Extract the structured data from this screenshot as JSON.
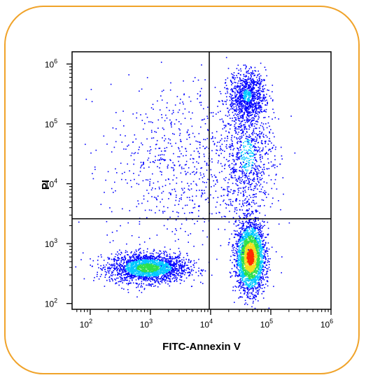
{
  "colors": {
    "frame_border": "#f0a32a",
    "gate_lines": "#000000",
    "density_low": "#0000ff",
    "density_mid": "#00c8ff",
    "density_high": "#2ee04a",
    "density_peak": "#ff2a00"
  },
  "chart_data": {
    "type": "scatter",
    "subtype": "flow-cytometry-density-dot-plot",
    "title": "",
    "xlabel": "FITC-Annexin V",
    "ylabel": "PI",
    "x_scale": "log",
    "y_scale": "log",
    "xlim": [
      50,
      1000000
    ],
    "ylim": [
      80,
      1600000
    ],
    "x_ticks": [
      {
        "value": 100,
        "base": "10",
        "exp": "2"
      },
      {
        "value": 1000,
        "base": "10",
        "exp": "3"
      },
      {
        "value": 10000,
        "base": "10",
        "exp": "4"
      },
      {
        "value": 100000,
        "base": "10",
        "exp": "5"
      },
      {
        "value": 1000000,
        "base": "10",
        "exp": "6"
      }
    ],
    "y_ticks": [
      {
        "value": 100,
        "base": "10",
        "exp": "2"
      },
      {
        "value": 1000,
        "base": "10",
        "exp": "3"
      },
      {
        "value": 10000,
        "base": "10",
        "exp": "4"
      },
      {
        "value": 100000,
        "base": "10",
        "exp": "5"
      },
      {
        "value": 1000000,
        "base": "10",
        "exp": "6"
      }
    ],
    "quadrant_gates": {
      "x": 9500,
      "y": 2600
    },
    "populations": [
      {
        "center": [
          900,
          400
        ],
        "spread_decades": [
          0.32,
          0.12
        ],
        "density": "high"
      },
      {
        "center": [
          45000,
          600
        ],
        "spread_decades": [
          0.12,
          0.28
        ],
        "density": "peak"
      },
      {
        "center": [
          40000,
          30000
        ],
        "spread_decades": [
          0.22,
          0.55
        ],
        "density": "medium"
      },
      {
        "center": [
          40000,
          300000
        ],
        "spread_decades": [
          0.15,
          0.2
        ],
        "density": "medium"
      },
      {
        "center": [
          3000,
          20000
        ],
        "spread_decades": [
          0.6,
          0.7
        ],
        "density": "sparse"
      }
    ],
    "grid": false,
    "legend": "none"
  }
}
